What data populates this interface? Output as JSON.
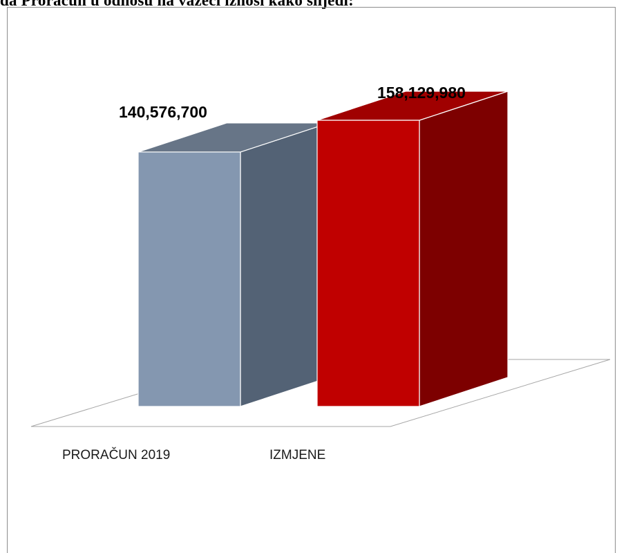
{
  "heading": "da Proračun u odnosu na važeći iznosi kako slijedi:",
  "chart_data": {
    "type": "bar",
    "style": "3d-column",
    "categories": [
      "PRORAČUN 2019",
      "IZMJENE"
    ],
    "values": [
      140576700,
      158129980
    ],
    "value_labels": [
      "140,576,700",
      "158,129,980"
    ],
    "colors": {
      "PRORAČUN 2019": {
        "front": "#8497b0",
        "side": "#536275",
        "top": "#677587"
      },
      "IZMJENE": {
        "front": "#c00000",
        "side": "#7d0000",
        "top": "#a00000"
      }
    },
    "ylim": [
      0,
      180000000
    ],
    "grid": false,
    "legend": "none"
  }
}
